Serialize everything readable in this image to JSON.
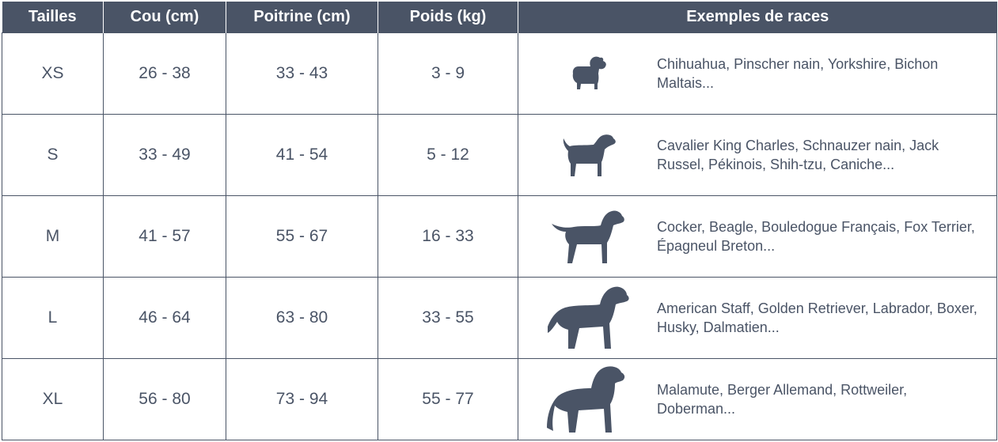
{
  "headers": {
    "size": "Tailles",
    "neck": "Cou (cm)",
    "chest": "Poitrine (cm)",
    "weight": "Poids (kg)",
    "breeds": "Exemples de races"
  },
  "rows": [
    {
      "size": "XS",
      "neck": "26 - 38",
      "chest": "33 - 43",
      "weight": "3 - 9",
      "icon": "small-dog-icon",
      "breeds": "Chihuahua, Pinscher nain, Yorkshire, Bichon Maltais..."
    },
    {
      "size": "S",
      "neck": "33 - 49",
      "chest": "41 - 54",
      "weight": "5 - 12",
      "icon": "terrier-dog-icon",
      "breeds": "Cavalier King Charles, Schnauzer nain, Jack Russel, Pékinois, Shih-tzu, Caniche..."
    },
    {
      "size": "M",
      "neck": "41 - 57",
      "chest": "55 - 67",
      "weight": "16 - 33",
      "icon": "medium-dog-icon",
      "breeds": "Cocker, Beagle, Bouledogue Français, Fox Terrier, Épagneul Breton..."
    },
    {
      "size": "L",
      "neck": "46 - 64",
      "chest": "63 - 80",
      "weight": "33 - 55",
      "icon": "large-dog-icon",
      "breeds": "American Staff, Golden Retriever, Labrador, Boxer, Husky, Dalmatien..."
    },
    {
      "size": "XL",
      "neck": "56 - 80",
      "chest": "73 - 94",
      "weight": "55 - 77",
      "icon": "giant-dog-icon",
      "breeds": "Malamute, Berger Allemand, Rottweiler, Doberman..."
    }
  ],
  "colors": {
    "header_bg": "#4a5466",
    "text": "#4a5466",
    "border": "#4a5466"
  }
}
